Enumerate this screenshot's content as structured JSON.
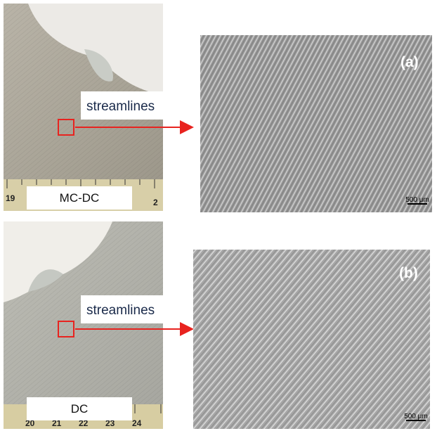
{
  "panels": [
    {
      "label": "(a)",
      "condition": "MC-DC",
      "annotation": "streamlines",
      "scale_bar": "500 μm",
      "ruler_numbers": [
        "19",
        "2"
      ]
    },
    {
      "label": "(b)",
      "condition": "DC",
      "annotation": "streamlines",
      "scale_bar": "500 μm",
      "ruler_numbers": [
        "20",
        "21",
        "22",
        "23",
        "24"
      ]
    }
  ]
}
